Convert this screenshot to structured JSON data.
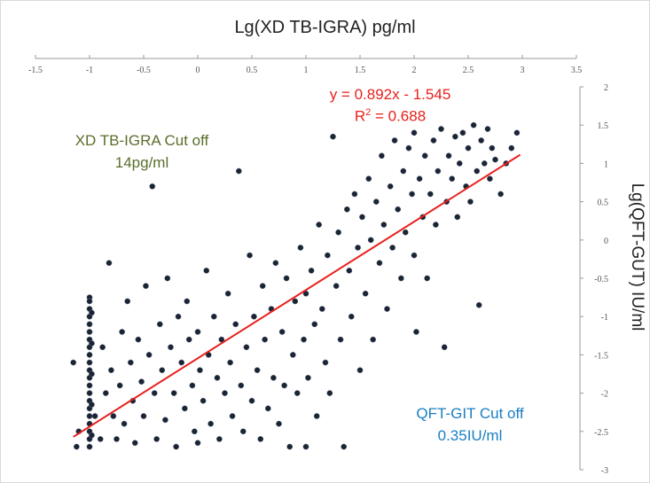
{
  "title": "Lg(XD TB-IGRA) pg/ml",
  "ylabel": "Lg(QFT-GUT) IU/ml",
  "annotations": {
    "equation": "y = 0.892x - 1.545",
    "r2_prefix": "R",
    "r2_sup": "2",
    "r2_suffix": " = 0.688",
    "igra_cutoff_line1": "XD TB-IGRA Cut off",
    "igra_cutoff_line2": "14pg/ml",
    "qft_cutoff_line1": "QFT-GIT Cut off",
    "qft_cutoff_line2": "0.35IU/ml"
  },
  "colors": {
    "points": "#1b2433",
    "trendline": "#e8211d",
    "igra_text": "#5a6e2c",
    "qft_text": "#1a7fc1"
  },
  "chart_data": {
    "type": "scatter",
    "title": "Lg(XD TB-IGRA) pg/ml",
    "xlabel": "Lg(XD TB-IGRA) pg/ml",
    "ylabel": "Lg(QFT-GUT) IU/ml",
    "x_axis_position": "top",
    "y_axis_position": "right",
    "xlim": [
      -1.5,
      3.5
    ],
    "ylim": [
      -3,
      2
    ],
    "x_ticks": [
      "-1.5",
      "-1",
      "-0.5",
      "0",
      "0.5",
      "1",
      "1.5",
      "2",
      "2.5",
      "3",
      "3.5"
    ],
    "y_ticks": [
      "2",
      "1.5",
      "1",
      "0.5",
      "0",
      "-0.5",
      "-1",
      "-1.5",
      "-2",
      "-2.5",
      "-3"
    ],
    "grid": false,
    "trendline": {
      "slope": 0.892,
      "intercept": -1.545,
      "x_range": [
        -1.15,
        2.98
      ],
      "r2": 0.688
    },
    "points": [
      [
        -1.15,
        -1.6
      ],
      [
        -1.1,
        -2.5
      ],
      [
        -1.12,
        -2.7
      ],
      [
        -1.0,
        -0.75
      ],
      [
        -1.0,
        -0.8
      ],
      [
        -1.0,
        -0.9
      ],
      [
        -1.0,
        -1.0
      ],
      [
        -1.0,
        -1.1
      ],
      [
        -1.0,
        -1.2
      ],
      [
        -1.0,
        -1.3
      ],
      [
        -1.0,
        -1.4
      ],
      [
        -1.0,
        -1.5
      ],
      [
        -1.0,
        -1.6
      ],
      [
        -1.0,
        -1.7
      ],
      [
        -1.0,
        -1.8
      ],
      [
        -1.0,
        -1.9
      ],
      [
        -1.0,
        -2.0
      ],
      [
        -1.0,
        -2.1
      ],
      [
        -1.0,
        -2.2
      ],
      [
        -1.0,
        -2.3
      ],
      [
        -1.0,
        -2.4
      ],
      [
        -1.0,
        -2.5
      ],
      [
        -1.0,
        -2.6
      ],
      [
        -1.0,
        -2.7
      ],
      [
        -0.98,
        -0.95
      ],
      [
        -0.98,
        -1.35
      ],
      [
        -0.98,
        -1.75
      ],
      [
        -0.98,
        -2.15
      ],
      [
        -0.98,
        -2.55
      ],
      [
        -0.95,
        -2.3
      ],
      [
        -0.9,
        -2.6
      ],
      [
        -0.88,
        -1.4
      ],
      [
        -0.85,
        -2.0
      ],
      [
        -0.82,
        -0.3
      ],
      [
        -0.8,
        -1.7
      ],
      [
        -0.78,
        -2.3
      ],
      [
        -0.75,
        -2.6
      ],
      [
        -0.72,
        -1.9
      ],
      [
        -0.7,
        -1.2
      ],
      [
        -0.68,
        -2.4
      ],
      [
        -0.65,
        -0.8
      ],
      [
        -0.62,
        -1.6
      ],
      [
        -0.6,
        -2.1
      ],
      [
        -0.58,
        -2.65
      ],
      [
        -0.55,
        -1.3
      ],
      [
        -0.52,
        -1.85
      ],
      [
        -0.5,
        -2.3
      ],
      [
        -0.48,
        -0.6
      ],
      [
        -0.45,
        -1.5
      ],
      [
        -0.42,
        0.7
      ],
      [
        -0.4,
        -2.0
      ],
      [
        -0.38,
        -2.6
      ],
      [
        -0.35,
        -1.1
      ],
      [
        -0.33,
        -1.7
      ],
      [
        -0.3,
        -2.35
      ],
      [
        -0.28,
        -0.5
      ],
      [
        -0.25,
        -1.4
      ],
      [
        -0.22,
        -2.0
      ],
      [
        -0.2,
        -2.7
      ],
      [
        -0.18,
        -1.0
      ],
      [
        -0.15,
        -1.6
      ],
      [
        -0.12,
        -2.2
      ],
      [
        -0.1,
        -0.8
      ],
      [
        -0.08,
        -1.3
      ],
      [
        -0.05,
        -1.9
      ],
      [
        -0.03,
        -2.5
      ],
      [
        0.0,
        -1.2
      ],
      [
        0.0,
        -2.65
      ],
      [
        0.02,
        -1.7
      ],
      [
        0.05,
        -2.1
      ],
      [
        0.08,
        -0.4
      ],
      [
        0.1,
        -1.5
      ],
      [
        0.12,
        -2.4
      ],
      [
        0.15,
        -1.0
      ],
      [
        0.18,
        -1.8
      ],
      [
        0.2,
        -2.6
      ],
      [
        0.22,
        -1.3
      ],
      [
        0.25,
        -2.0
      ],
      [
        0.28,
        -0.7
      ],
      [
        0.3,
        -1.6
      ],
      [
        0.32,
        -2.3
      ],
      [
        0.35,
        -1.1
      ],
      [
        0.38,
        0.9
      ],
      [
        0.4,
        -1.9
      ],
      [
        0.42,
        -2.5
      ],
      [
        0.45,
        -1.4
      ],
      [
        0.48,
        -0.2
      ],
      [
        0.5,
        -2.1
      ],
      [
        0.52,
        -1.0
      ],
      [
        0.55,
        -1.7
      ],
      [
        0.58,
        -2.6
      ],
      [
        0.6,
        -0.6
      ],
      [
        0.62,
        -1.3
      ],
      [
        0.65,
        -2.2
      ],
      [
        0.68,
        -0.9
      ],
      [
        0.7,
        -1.8
      ],
      [
        0.72,
        -0.3
      ],
      [
        0.75,
        -2.4
      ],
      [
        0.78,
        -1.2
      ],
      [
        0.8,
        -1.9
      ],
      [
        0.82,
        -0.5
      ],
      [
        0.85,
        -2.7
      ],
      [
        0.88,
        -1.5
      ],
      [
        0.9,
        -0.8
      ],
      [
        0.92,
        -2.0
      ],
      [
        0.95,
        -0.1
      ],
      [
        0.98,
        -1.3
      ],
      [
        1.0,
        -0.7
      ],
      [
        1.0,
        -2.7
      ],
      [
        1.02,
        -1.8
      ],
      [
        1.05,
        -0.4
      ],
      [
        1.08,
        -1.1
      ],
      [
        1.1,
        -2.3
      ],
      [
        1.12,
        0.2
      ],
      [
        1.15,
        -0.9
      ],
      [
        1.18,
        -1.6
      ],
      [
        1.2,
        -0.2
      ],
      [
        1.22,
        -2.0
      ],
      [
        1.25,
        1.35
      ],
      [
        1.28,
        -0.6
      ],
      [
        1.3,
        0.1
      ],
      [
        1.32,
        -1.3
      ],
      [
        1.35,
        -2.7
      ],
      [
        1.38,
        0.4
      ],
      [
        1.4,
        -0.4
      ],
      [
        1.42,
        -1.0
      ],
      [
        1.45,
        0.6
      ],
      [
        1.48,
        -0.1
      ],
      [
        1.5,
        -1.7
      ],
      [
        1.52,
        0.3
      ],
      [
        1.55,
        -0.7
      ],
      [
        1.58,
        0.8
      ],
      [
        1.6,
        0.0
      ],
      [
        1.62,
        -1.3
      ],
      [
        1.65,
        0.5
      ],
      [
        1.68,
        -0.3
      ],
      [
        1.7,
        1.1
      ],
      [
        1.72,
        0.2
      ],
      [
        1.75,
        -0.9
      ],
      [
        1.78,
        0.7
      ],
      [
        1.8,
        -0.1
      ],
      [
        1.82,
        1.3
      ],
      [
        1.85,
        0.4
      ],
      [
        1.88,
        -0.5
      ],
      [
        1.9,
        0.9
      ],
      [
        1.92,
        0.1
      ],
      [
        1.95,
        1.2
      ],
      [
        1.98,
        0.6
      ],
      [
        2.0,
        -0.2
      ],
      [
        2.0,
        1.4
      ],
      [
        2.02,
        -1.2
      ],
      [
        2.05,
        0.8
      ],
      [
        2.08,
        0.3
      ],
      [
        2.1,
        1.1
      ],
      [
        2.12,
        -0.5
      ],
      [
        2.15,
        0.6
      ],
      [
        2.18,
        1.3
      ],
      [
        2.2,
        0.2
      ],
      [
        2.22,
        0.9
      ],
      [
        2.25,
        1.45
      ],
      [
        2.28,
        -1.4
      ],
      [
        2.3,
        0.5
      ],
      [
        2.32,
        1.1
      ],
      [
        2.35,
        0.8
      ],
      [
        2.38,
        1.35
      ],
      [
        2.4,
        0.3
      ],
      [
        2.42,
        1.0
      ],
      [
        2.45,
        1.4
      ],
      [
        2.48,
        0.7
      ],
      [
        2.5,
        1.2
      ],
      [
        2.52,
        0.5
      ],
      [
        2.55,
        1.5
      ],
      [
        2.58,
        0.9
      ],
      [
        2.6,
        -0.85
      ],
      [
        2.62,
        1.3
      ],
      [
        2.65,
        1.0
      ],
      [
        2.68,
        1.45
      ],
      [
        2.7,
        0.8
      ],
      [
        2.72,
        1.2
      ],
      [
        2.75,
        1.05
      ],
      [
        2.8,
        0.6
      ],
      [
        2.85,
        1.0
      ],
      [
        2.9,
        1.2
      ],
      [
        2.95,
        1.4
      ]
    ]
  }
}
